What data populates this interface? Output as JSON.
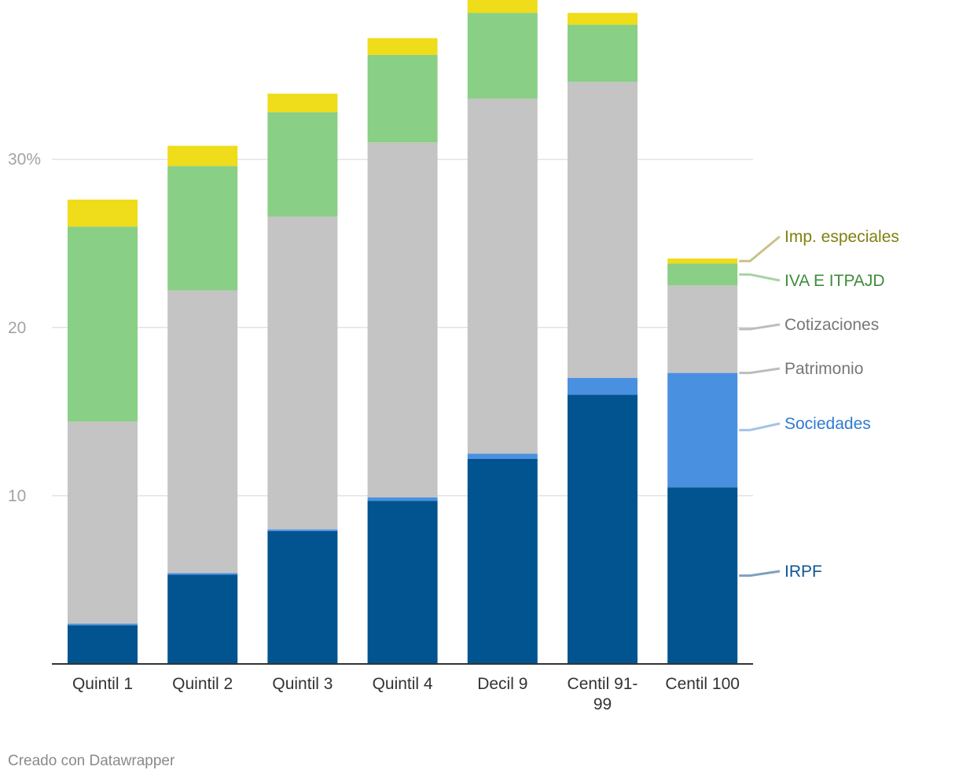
{
  "chart_data": {
    "type": "bar",
    "stacked": true,
    "categories": [
      "Quintil 1",
      "Quintil 2",
      "Quintil 3",
      "Quintil 4",
      "Decil 9",
      "Centil 91-99",
      "Centil 100"
    ],
    "category_lines": [
      [
        "Quintil 1"
      ],
      [
        "Quintil 2"
      ],
      [
        "Quintil 3"
      ],
      [
        "Quintil 4"
      ],
      [
        "Decil 9"
      ],
      [
        "Centil 91-",
        "99"
      ],
      [
        "Centil 100"
      ]
    ],
    "series": [
      {
        "name": "IRPF",
        "color": "#01548f",
        "label_color": "#0d5696",
        "line_color": "#7f9fbf",
        "values": [
          2.3,
          5.3,
          7.9,
          9.7,
          12.2,
          16.0,
          10.5
        ]
      },
      {
        "name": "Sociedades",
        "color": "#4a90e0",
        "label_color": "#2e7bcf",
        "line_color": "#a5c4e8",
        "values": [
          0.1,
          0.1,
          0.1,
          0.2,
          0.3,
          1.0,
          6.8
        ]
      },
      {
        "name": "Patrimonio",
        "color": "#c4c4c4",
        "label_color": "#777777",
        "line_color": "#bdbdbd",
        "values": [
          0.0,
          0.0,
          0.0,
          0.0,
          0.0,
          0.0,
          0.0
        ]
      },
      {
        "name": "Cotizaciones",
        "color": "#c4c4c4",
        "label_color": "#777777",
        "line_color": "#bdbdbd",
        "values": [
          12.0,
          16.8,
          18.6,
          21.1,
          21.1,
          17.6,
          5.2
        ]
      },
      {
        "name": "IVA E ITPAJD",
        "color": "#89cf85",
        "label_color": "#3f8c3b",
        "line_color": "#a8d4a5",
        "values": [
          11.6,
          7.4,
          6.2,
          5.2,
          5.1,
          3.4,
          1.3
        ]
      },
      {
        "name": "Imp. especiales",
        "color": "#efdc1a",
        "label_color": "#808010",
        "line_color": "#c9c28a",
        "values": [
          1.6,
          1.2,
          1.1,
          1.0,
          0.9,
          0.7,
          0.3
        ]
      }
    ],
    "yticks": [
      10,
      20,
      30
    ],
    "ytick_labels": [
      "10",
      "20",
      "30%"
    ],
    "ylim": [
      0,
      39
    ],
    "grid": true,
    "legend": "right-inline",
    "title": "",
    "xlabel": "",
    "ylabel": ""
  },
  "footer": {
    "credit": "Creado con Datawrapper"
  }
}
